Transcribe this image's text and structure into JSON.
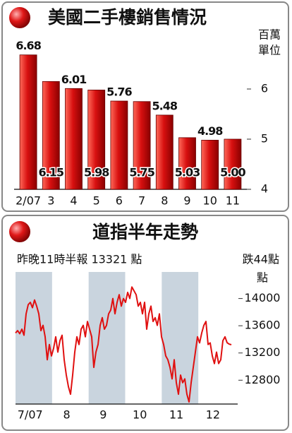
{
  "chart_data": [
    {
      "type": "bar",
      "title": "美國二手樓銷售情況",
      "y_label_lines": [
        "百萬",
        "單位"
      ],
      "categories": [
        "2/07",
        "3",
        "4",
        "5",
        "6",
        "7",
        "8",
        "9",
        "10",
        "11"
      ],
      "values": [
        6.68,
        6.15,
        6.01,
        5.98,
        5.76,
        5.75,
        5.48,
        5.03,
        4.98,
        5.0
      ],
      "value_labels": [
        "6.68",
        "6.15",
        "6.01",
        "5.98",
        "5.76",
        "5.75",
        "5.48",
        "5.03",
        "4.98",
        "5.00"
      ],
      "color": "#d01010",
      "ylim": [
        4,
        7
      ],
      "yticks": [
        4,
        5,
        6
      ]
    },
    {
      "type": "line",
      "title": "道指半年走勢",
      "annotation": "昨晚11時半報 13321 點",
      "change": "跌44點",
      "y_label": "點",
      "months": [
        "7/07",
        "8",
        "9",
        "10",
        "11",
        "12"
      ],
      "values": [
        13494,
        13528,
        13483,
        13550,
        13460,
        13775,
        13910,
        13944,
        13865,
        13978,
        13888,
        13775,
        13528,
        13606,
        13438,
        13100,
        13325,
        13156,
        13269,
        13438,
        13213,
        13381,
        13460,
        13100,
        12875,
        12706,
        12594,
        12875,
        13213,
        13438,
        13325,
        13550,
        13606,
        13438,
        13663,
        13550,
        13438,
        12988,
        13213,
        13325,
        13606,
        13719,
        13550,
        13606,
        13775,
        13831,
        14000,
        13775,
        13944,
        14056,
        13888,
        14000,
        13944,
        14090,
        14000,
        14169,
        14113,
        14056,
        13888,
        13944,
        13775,
        13944,
        13550,
        13775,
        13888,
        13663,
        13719,
        13606,
        13775,
        13438,
        13325,
        13156,
        13100,
        12988,
        12819,
        13100,
        12763,
        12594,
        12875,
        12763,
        12819,
        12594,
        12481,
        12763,
        12988,
        13213,
        13438,
        13348,
        13494,
        13606,
        13663,
        13325,
        13348,
        13156,
        13044,
        13213,
        13044,
        13100,
        13381,
        13438,
        13350,
        13330,
        13321
      ],
      "color": "#e01010",
      "band_color": "#c9d4de",
      "ylim": [
        12450,
        14390
      ],
      "yticks": [
        12800,
        13200,
        13600,
        14000
      ]
    }
  ]
}
